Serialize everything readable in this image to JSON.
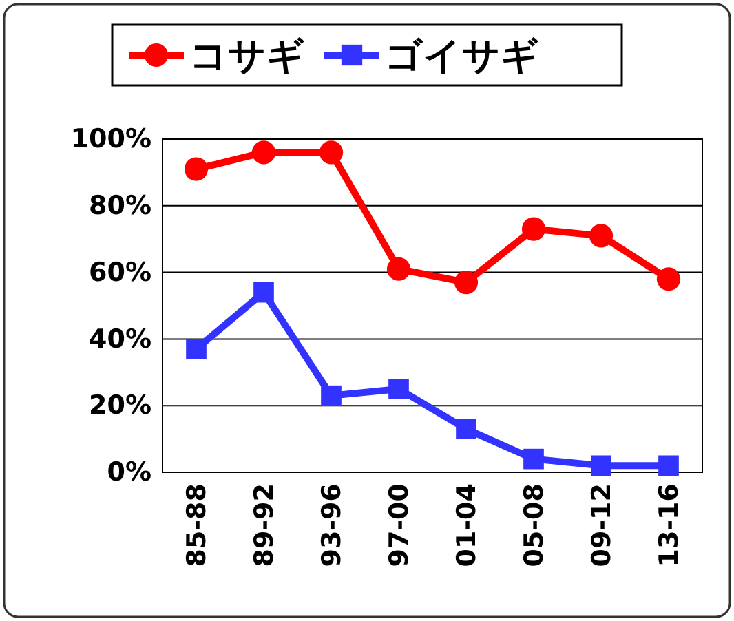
{
  "chart_data": {
    "type": "line",
    "categories": [
      "85-88",
      "89-92",
      "93-96",
      "97-00",
      "01-04",
      "05-08",
      "09-12",
      "13-16"
    ],
    "series": [
      {
        "name": "コサギ",
        "color": "#ff0000",
        "marker": "circle",
        "values": [
          91,
          96,
          96,
          61,
          57,
          73,
          71,
          58
        ]
      },
      {
        "name": "ゴイサギ",
        "color": "#3333ff",
        "marker": "square",
        "values": [
          37,
          54,
          23,
          25,
          13,
          4,
          2,
          2
        ]
      }
    ],
    "ylim": [
      0,
      100
    ],
    "yticks": [
      {
        "value": 0,
        "label": "0%"
      },
      {
        "value": 20,
        "label": "20%"
      },
      {
        "value": 40,
        "label": "40%"
      },
      {
        "value": 60,
        "label": "60%"
      },
      {
        "value": 80,
        "label": "80%"
      },
      {
        "value": 100,
        "label": "100%"
      }
    ],
    "grid": "y",
    "legend": "top",
    "line_style": "solid"
  }
}
